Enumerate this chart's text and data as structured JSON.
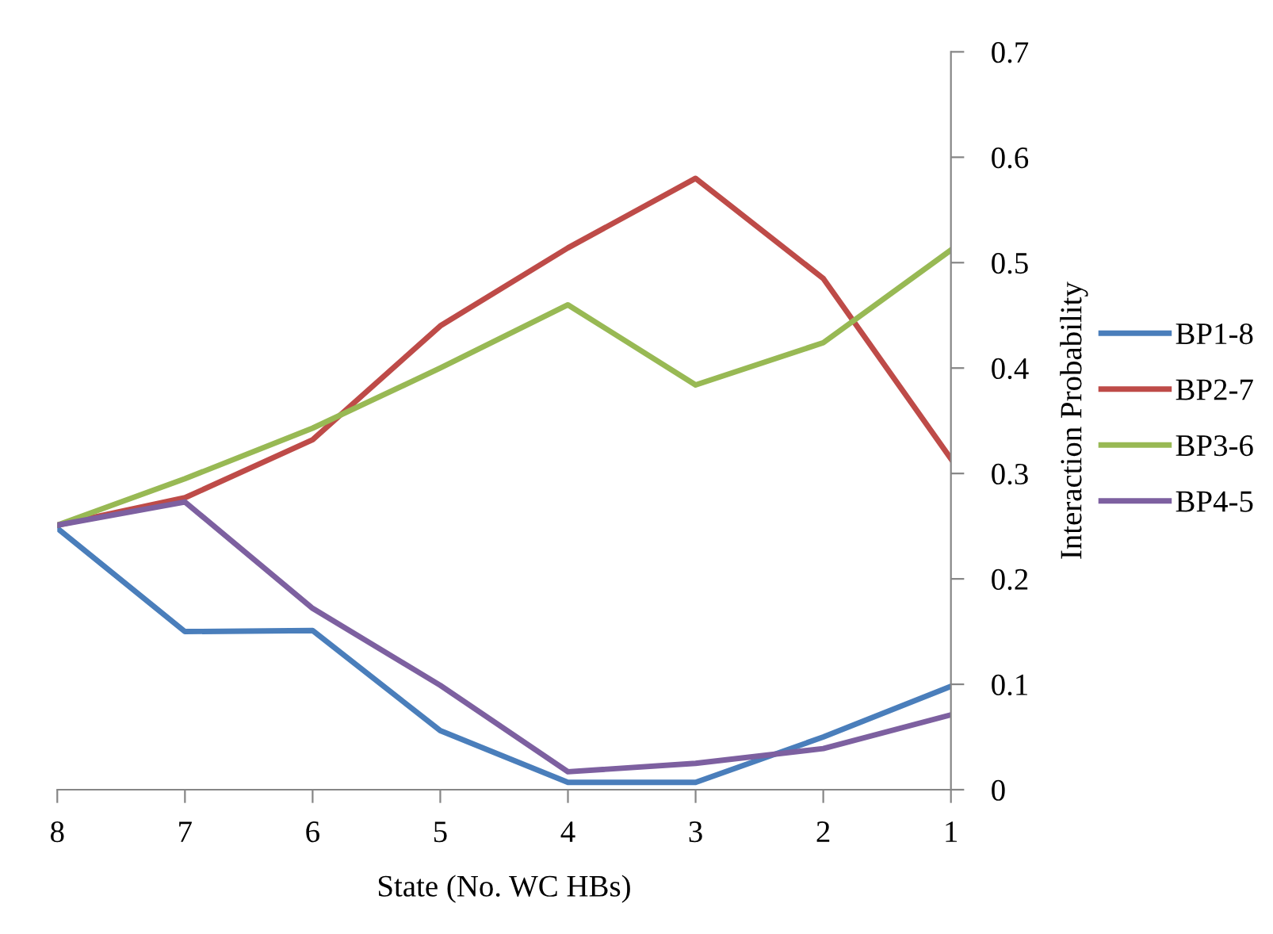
{
  "chart_data": {
    "type": "line",
    "xlabel": "State (No. WC HBs)",
    "ylabel": "Interaction Probability",
    "categories": [
      "8",
      "7",
      "6",
      "5",
      "4",
      "3",
      "2",
      "1"
    ],
    "ylim": [
      0,
      0.7
    ],
    "yticks": [
      0,
      0.1,
      0.2,
      0.3,
      0.4,
      0.5,
      0.6,
      0.7
    ],
    "grid": false,
    "legend": "right",
    "marker": "none",
    "line_style": "solid",
    "series": [
      {
        "name": "BP1-8",
        "color": "#4a7ebb",
        "values": [
          0.248,
          0.15,
          0.151,
          0.056,
          0.007,
          0.007,
          0.05,
          0.098
        ]
      },
      {
        "name": "BP2-7",
        "color": "#be4b48",
        "values": [
          0.251,
          0.277,
          0.332,
          0.44,
          0.514,
          0.58,
          0.485,
          0.314
        ]
      },
      {
        "name": "BP3-6",
        "color": "#98b954",
        "values": [
          0.251,
          0.295,
          0.343,
          0.4,
          0.46,
          0.384,
          0.424,
          0.512
        ]
      },
      {
        "name": "BP4-5",
        "color": "#7d60a0",
        "values": [
          0.251,
          0.273,
          0.172,
          0.099,
          0.017,
          0.025,
          0.039,
          0.071
        ]
      }
    ]
  }
}
